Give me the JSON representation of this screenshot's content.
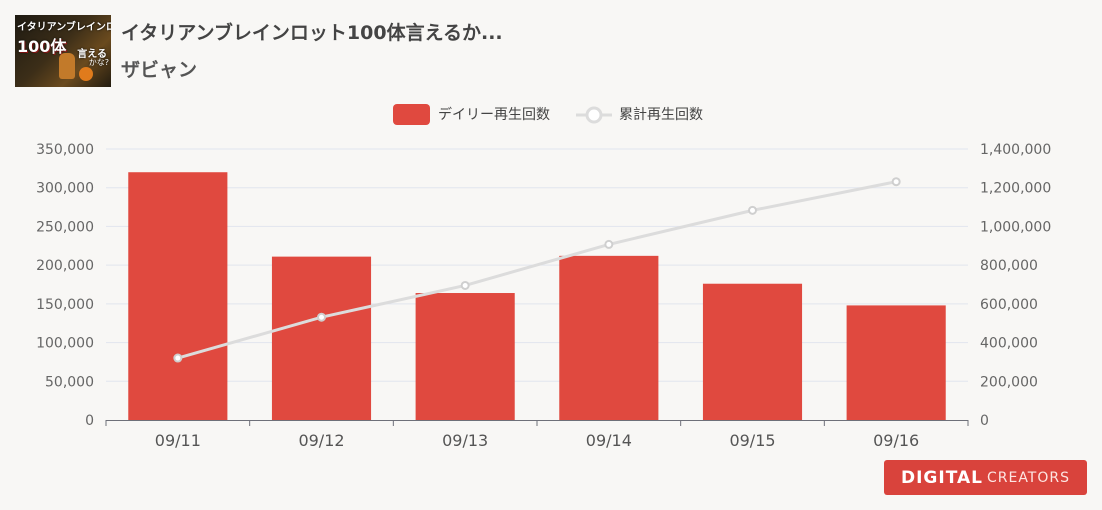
{
  "video": {
    "title": "イタリアンブレインロット100体言えるか...",
    "channel": "ザビャン",
    "thumbnail": {
      "line1": "イタリアンブレインロット",
      "line2": "100体",
      "line3": "言える",
      "line4": "かな?"
    }
  },
  "branding": {
    "logo_main": "DIGITAL",
    "logo_sub": "CREATORS"
  },
  "chart_data": {
    "type": "bar",
    "categories": [
      "09/11",
      "09/12",
      "09/13",
      "09/14",
      "09/15",
      "09/16"
    ],
    "series": [
      {
        "name": "デイリー再生回数",
        "type": "bar",
        "axis": "left",
        "color": "#e0493f",
        "values": [
          320000,
          211000,
          164000,
          212000,
          176000,
          148000
        ]
      },
      {
        "name": "累計再生回数",
        "type": "line",
        "axis": "right",
        "color": "#dcdcdc",
        "values": [
          320000,
          531000,
          695000,
          907000,
          1083000,
          1231000
        ]
      }
    ],
    "y_left": {
      "min": 0,
      "max": 350000,
      "ticks": [
        "350,000",
        "300,000",
        "250,000",
        "200,000",
        "150,000",
        "100,000",
        "50,000",
        "0"
      ]
    },
    "y_right": {
      "min": 0,
      "max": 1400000,
      "ticks": [
        "1,400,000",
        "1,200,000",
        "1,000,000",
        "800,000",
        "600,000",
        "400,000",
        "200,000",
        "0"
      ]
    },
    "grid": true,
    "legend": "top-center"
  }
}
